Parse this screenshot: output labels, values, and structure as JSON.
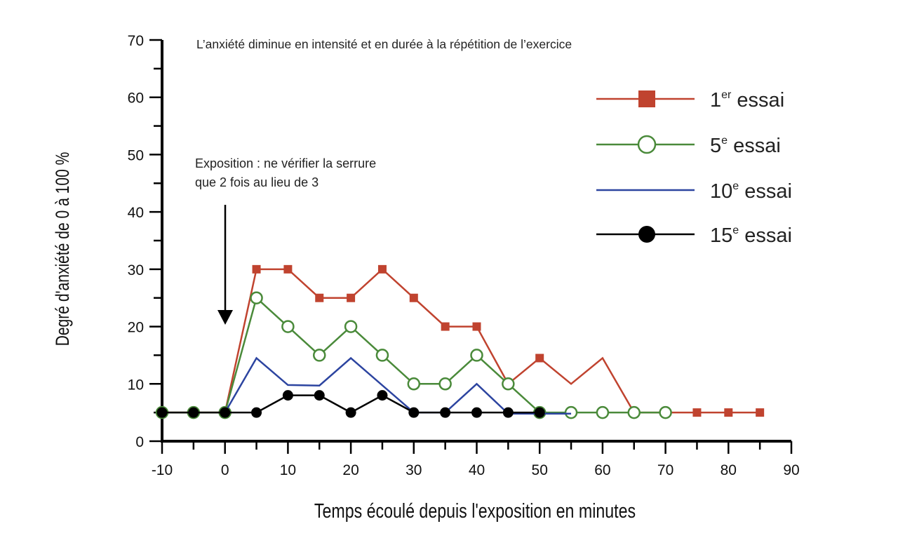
{
  "chart_data": {
    "type": "line",
    "title": "L’anxiété diminue en intensité et en durée à la répétition de l’exercice",
    "annotation": [
      "Exposition : ne vérifier la serrure",
      "que 2 fois au lieu de 3"
    ],
    "xlabel": "Temps écoulé depuis l'exposition en minutes",
    "ylabel": "Degré d'anxiété de 0 à 100 %",
    "xlim": [
      -10,
      90
    ],
    "ylim": [
      0,
      70
    ],
    "xticks": [
      -10,
      0,
      10,
      20,
      30,
      40,
      50,
      60,
      70,
      80,
      90
    ],
    "yticks": [
      0,
      10,
      20,
      30,
      40,
      50,
      60,
      70
    ],
    "legend_position": "top-right",
    "series": [
      {
        "name": "1er essai",
        "base": "1",
        "sup": "er",
        "label": " essai",
        "color": "#c0432f",
        "marker": "square",
        "x": [
          -10,
          -5,
          0,
          5,
          10,
          15,
          20,
          25,
          30,
          35,
          40,
          45,
          50,
          55,
          60,
          65,
          70,
          75,
          80,
          85
        ],
        "y": [
          5,
          5,
          5,
          30,
          30,
          25,
          25,
          30,
          25,
          20,
          20,
          10,
          14.5,
          10,
          14.5,
          5,
          5,
          5,
          5,
          5
        ],
        "markers": [
          1,
          1,
          1,
          1,
          1,
          1,
          1,
          1,
          1,
          1,
          1,
          1,
          1,
          0,
          0,
          0,
          0,
          1,
          1,
          1
        ]
      },
      {
        "name": "5e essai",
        "base": "5",
        "sup": "e",
        "label": " essai",
        "color": "#4a8a3a",
        "marker": "open-circle",
        "x": [
          -10,
          -5,
          0,
          5,
          10,
          15,
          20,
          25,
          30,
          35,
          40,
          45,
          50,
          55,
          60,
          65,
          70
        ],
        "y": [
          5,
          5,
          5,
          25,
          20,
          15,
          20,
          15,
          10,
          10,
          15,
          10,
          5,
          5,
          5,
          5,
          5
        ]
      },
      {
        "name": "10e essai",
        "base": "10",
        "sup": "e",
        "label": " essai",
        "color": "#2c44a0",
        "marker": "none",
        "x": [
          0,
          5,
          10,
          15,
          20,
          30,
          35,
          40,
          45,
          50,
          55
        ],
        "y": [
          5,
          14.5,
          9.8,
          9.7,
          14.5,
          5,
          5,
          10,
          4.8,
          4.8,
          4.8
        ]
      },
      {
        "name": "15e essai",
        "base": "15",
        "sup": "e",
        "label": " essai",
        "color": "#000000",
        "marker": "filled-circle",
        "x": [
          -10,
          -5,
          0,
          5,
          10,
          15,
          20,
          25,
          30,
          35,
          40,
          45,
          50
        ],
        "y": [
          5,
          5,
          5,
          5,
          8,
          8,
          5,
          8,
          5,
          5,
          5,
          5,
          5
        ]
      }
    ]
  }
}
